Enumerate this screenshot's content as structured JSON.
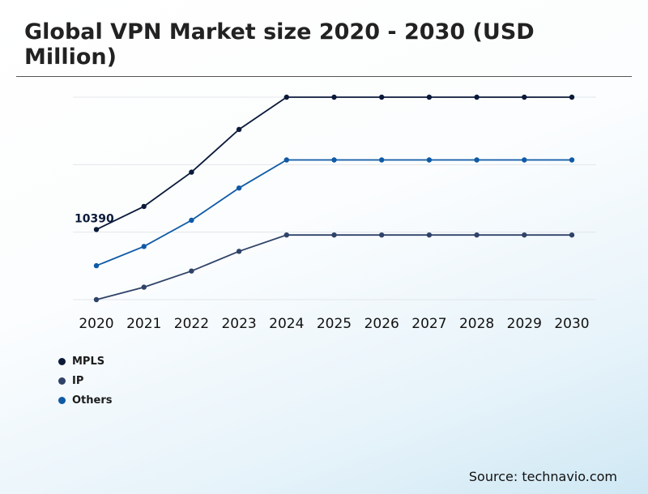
{
  "header": {
    "title": "Global VPN Market size 2020 - 2030 (USD Million)"
  },
  "footer": {
    "source": "Source: technavio.com"
  },
  "chart_data": {
    "type": "line",
    "title": "Global VPN Market size 2020 - 2030 (USD Million)",
    "xlabel": "",
    "ylabel": "",
    "categories": [
      "2020",
      "2021",
      "2022",
      "2023",
      "2024",
      "2025",
      "2026",
      "2027",
      "2028",
      "2029",
      "2030"
    ],
    "ylim": [
      0,
      30000
    ],
    "grid": true,
    "legend_position": "bottom-left",
    "annotations": [
      {
        "text": "10390",
        "series": "MPLS",
        "category": "2020"
      }
    ],
    "series": [
      {
        "name": "MPLS",
        "color": "#0b1a3a",
        "values": [
          10390,
          13810,
          18890,
          25220,
          30000,
          30000,
          30000,
          30000,
          30000,
          30000,
          30000
        ]
      },
      {
        "name": "IP",
        "color": "#2f4268",
        "values": [
          0,
          1850,
          4240,
          7160,
          9580,
          9580,
          9580,
          9580,
          9580,
          9580,
          9580
        ]
      },
      {
        "name": "Others",
        "color": "#0f5aa6",
        "values": [
          5030,
          7880,
          11760,
          16540,
          20700,
          20700,
          20700,
          20700,
          20700,
          20700,
          20700
        ]
      }
    ]
  }
}
